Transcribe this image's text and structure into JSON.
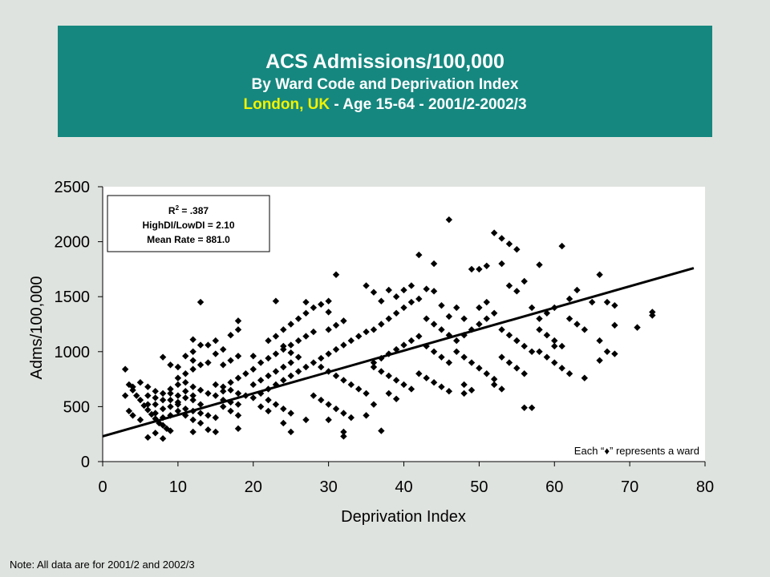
{
  "header": {
    "title": "ACS Admissions/100,000",
    "subtitle": "By Ward Code and Deprivation Index",
    "location": "London, UK",
    "detail": " - Age 15-64 - 2001/2-2002/3"
  },
  "stats_box": {
    "r2_label": "R",
    "r2_sup": "2",
    "r2_value": " = .387",
    "ratio": "HighDI/LowDI = 2.10",
    "mean": "Mean Rate = 881.0"
  },
  "legend_note": "Each “♦” represents a ward",
  "footnote": "Note:  All data are for 2001/2 and 2002/3",
  "colors": {
    "banner": "#15877f",
    "location_highlight": "#f2f200",
    "markers": "#000000"
  },
  "chart_data": {
    "type": "scatter",
    "xlabel": "Deprivation Index",
    "ylabel": "Adms/100,000",
    "xlim": [
      0,
      80
    ],
    "ylim": [
      0,
      2500
    ],
    "x_ticks": [
      0,
      10,
      20,
      30,
      40,
      50,
      60,
      70,
      80
    ],
    "y_ticks": [
      0,
      500,
      1000,
      1500,
      2000,
      2500
    ],
    "grid": false,
    "marker": "diamond",
    "trendline": {
      "x": [
        0,
        78.5
      ],
      "y": [
        230,
        1760
      ]
    },
    "points": [
      [
        3,
        840
      ],
      [
        3.5,
        700
      ],
      [
        4,
        650
      ],
      [
        4.5,
        600
      ],
      [
        5,
        560
      ],
      [
        5.5,
        510
      ],
      [
        6,
        470
      ],
      [
        6.5,
        430
      ],
      [
        7,
        390
      ],
      [
        7.5,
        350
      ],
      [
        8,
        330
      ],
      [
        8.5,
        300
      ],
      [
        9,
        280
      ],
      [
        7,
        260
      ],
      [
        6,
        220
      ],
      [
        8,
        210
      ],
      [
        5,
        380
      ],
      [
        4,
        420
      ],
      [
        3.5,
        460
      ],
      [
        6,
        520
      ],
      [
        7,
        580
      ],
      [
        8,
        620
      ],
      [
        9,
        660
      ],
      [
        10,
        700
      ],
      [
        11,
        720
      ],
      [
        12,
        680
      ],
      [
        13,
        650
      ],
      [
        14,
        620
      ],
      [
        9,
        560
      ],
      [
        10,
        520
      ],
      [
        11,
        480
      ],
      [
        12,
        460
      ],
      [
        13,
        440
      ],
      [
        14,
        420
      ],
      [
        15,
        400
      ],
      [
        8,
        480
      ],
      [
        9,
        500
      ],
      [
        10,
        540
      ],
      [
        11,
        580
      ],
      [
        12,
        600
      ],
      [
        7,
        640
      ],
      [
        6,
        680
      ],
      [
        5,
        720
      ],
      [
        4,
        680
      ],
      [
        3,
        600
      ],
      [
        10,
        600
      ],
      [
        11,
        640
      ],
      [
        12,
        560
      ],
      [
        13,
        520
      ],
      [
        9,
        620
      ],
      [
        8,
        560
      ],
      [
        7,
        520
      ],
      [
        6,
        600
      ],
      [
        10,
        460
      ],
      [
        11,
        420
      ],
      [
        12,
        380
      ],
      [
        13,
        350
      ],
      [
        9,
        420
      ],
      [
        8,
        400
      ],
      [
        7,
        440
      ],
      [
        10,
        760
      ],
      [
        11,
        800
      ],
      [
        12,
        840
      ],
      [
        13,
        880
      ],
      [
        14,
        900
      ],
      [
        12,
        920
      ],
      [
        11,
        960
      ],
      [
        12,
        1000
      ],
      [
        13,
        1060
      ],
      [
        12,
        1110
      ],
      [
        8,
        950
      ],
      [
        9,
        880
      ],
      [
        10,
        860
      ],
      [
        15,
        700
      ],
      [
        16,
        680
      ],
      [
        17,
        650
      ],
      [
        18,
        620
      ],
      [
        19,
        600
      ],
      [
        20,
        580
      ],
      [
        16,
        560
      ],
      [
        17,
        540
      ],
      [
        18,
        520
      ],
      [
        15,
        600
      ],
      [
        16,
        640
      ],
      [
        17,
        720
      ],
      [
        18,
        760
      ],
      [
        19,
        800
      ],
      [
        20,
        840
      ],
      [
        16,
        880
      ],
      [
        17,
        920
      ],
      [
        18,
        960
      ],
      [
        15,
        980
      ],
      [
        16,
        1020
      ],
      [
        14,
        1060
      ],
      [
        15,
        1100
      ],
      [
        17,
        1150
      ],
      [
        18,
        1200
      ],
      [
        18,
        1280
      ],
      [
        13,
        1450
      ],
      [
        16,
        500
      ],
      [
        17,
        460
      ],
      [
        18,
        420
      ],
      [
        18,
        300
      ],
      [
        14,
        290
      ],
      [
        15,
        270
      ],
      [
        12,
        270
      ],
      [
        20,
        700
      ],
      [
        21,
        740
      ],
      [
        22,
        780
      ],
      [
        23,
        820
      ],
      [
        24,
        860
      ],
      [
        25,
        900
      ],
      [
        21,
        620
      ],
      [
        22,
        660
      ],
      [
        23,
        700
      ],
      [
        24,
        740
      ],
      [
        25,
        780
      ],
      [
        26,
        820
      ],
      [
        27,
        860
      ],
      [
        28,
        900
      ],
      [
        22,
        940
      ],
      [
        23,
        980
      ],
      [
        24,
        1020
      ],
      [
        25,
        1060
      ],
      [
        26,
        1100
      ],
      [
        27,
        1140
      ],
      [
        28,
        1180
      ],
      [
        24,
        1200
      ],
      [
        25,
        1250
      ],
      [
        26,
        1300
      ],
      [
        27,
        1350
      ],
      [
        28,
        1400
      ],
      [
        23,
        1460
      ],
      [
        27,
        1450
      ],
      [
        22,
        560
      ],
      [
        23,
        520
      ],
      [
        24,
        480
      ],
      [
        25,
        440
      ],
      [
        21,
        500
      ],
      [
        22,
        460
      ],
      [
        24,
        350
      ],
      [
        25,
        270
      ],
      [
        27,
        380
      ],
      [
        21,
        900
      ],
      [
        20,
        960
      ],
      [
        22,
        1100
      ],
      [
        23,
        1140
      ],
      [
        24,
        1050
      ],
      [
        25,
        990
      ],
      [
        26,
        950
      ],
      [
        29,
        940
      ],
      [
        30,
        980
      ],
      [
        31,
        1020
      ],
      [
        32,
        1060
      ],
      [
        33,
        1100
      ],
      [
        34,
        1140
      ],
      [
        35,
        1180
      ],
      [
        29,
        860
      ],
      [
        30,
        820
      ],
      [
        31,
        780
      ],
      [
        32,
        740
      ],
      [
        33,
        700
      ],
      [
        34,
        660
      ],
      [
        35,
        620
      ],
      [
        30,
        1200
      ],
      [
        31,
        1240
      ],
      [
        32,
        1280
      ],
      [
        30,
        1360
      ],
      [
        29,
        1430
      ],
      [
        30,
        1460
      ],
      [
        31,
        1700
      ],
      [
        28,
        600
      ],
      [
        29,
        560
      ],
      [
        30,
        520
      ],
      [
        31,
        480
      ],
      [
        32,
        440
      ],
      [
        33,
        400
      ],
      [
        30,
        380
      ],
      [
        32,
        270
      ],
      [
        32,
        230
      ],
      [
        36,
        900
      ],
      [
        37,
        940
      ],
      [
        38,
        980
      ],
      [
        39,
        1020
      ],
      [
        40,
        1060
      ],
      [
        41,
        1100
      ],
      [
        42,
        1140
      ],
      [
        36,
        860
      ],
      [
        37,
        820
      ],
      [
        38,
        780
      ],
      [
        39,
        740
      ],
      [
        40,
        700
      ],
      [
        41,
        660
      ],
      [
        36,
        1200
      ],
      [
        37,
        1250
      ],
      [
        38,
        1300
      ],
      [
        39,
        1350
      ],
      [
        40,
        1400
      ],
      [
        41,
        1450
      ],
      [
        39,
        1500
      ],
      [
        40,
        1560
      ],
      [
        41,
        1600
      ],
      [
        42,
        1880
      ],
      [
        43,
        1570
      ],
      [
        44,
        1800
      ],
      [
        35,
        1600
      ],
      [
        36,
        1540
      ],
      [
        37,
        1460
      ],
      [
        38,
        1560
      ],
      [
        43,
        1300
      ],
      [
        44,
        1250
      ],
      [
        45,
        1200
      ],
      [
        46,
        1150
      ],
      [
        43,
        1050
      ],
      [
        44,
        1000
      ],
      [
        45,
        950
      ],
      [
        46,
        900
      ],
      [
        42,
        800
      ],
      [
        43,
        760
      ],
      [
        44,
        720
      ],
      [
        45,
        680
      ],
      [
        46,
        640
      ],
      [
        38,
        620
      ],
      [
        39,
        570
      ],
      [
        36,
        520
      ],
      [
        37,
        280
      ],
      [
        35,
        420
      ],
      [
        42,
        1480
      ],
      [
        45,
        1420
      ],
      [
        46,
        2200
      ],
      [
        47,
        1100
      ],
      [
        48,
        1150
      ],
      [
        49,
        1200
      ],
      [
        50,
        1250
      ],
      [
        51,
        1300
      ],
      [
        52,
        1350
      ],
      [
        47,
        1000
      ],
      [
        48,
        950
      ],
      [
        49,
        900
      ],
      [
        50,
        850
      ],
      [
        51,
        800
      ],
      [
        52,
        750
      ],
      [
        48,
        700
      ],
      [
        49,
        650
      ],
      [
        48,
        620
      ],
      [
        50,
        1400
      ],
      [
        51,
        1450
      ],
      [
        50,
        1750
      ],
      [
        51,
        1780
      ],
      [
        49,
        1750
      ],
      [
        52,
        2080
      ],
      [
        53,
        2030
      ],
      [
        54,
        1980
      ],
      [
        55,
        1930
      ],
      [
        53,
        1800
      ],
      [
        54,
        1600
      ],
      [
        55,
        1550
      ],
      [
        56,
        1640
      ],
      [
        53,
        1200
      ],
      [
        54,
        1150
      ],
      [
        55,
        1100
      ],
      [
        56,
        1050
      ],
      [
        57,
        1000
      ],
      [
        53,
        950
      ],
      [
        54,
        900
      ],
      [
        55,
        850
      ],
      [
        56,
        800
      ],
      [
        52,
        700
      ],
      [
        53,
        660
      ],
      [
        56,
        490
      ],
      [
        57,
        490
      ],
      [
        58,
        1300
      ],
      [
        59,
        1350
      ],
      [
        60,
        1400
      ],
      [
        58,
        1200
      ],
      [
        59,
        1150
      ],
      [
        60,
        1100
      ],
      [
        61,
        1050
      ],
      [
        58,
        1000
      ],
      [
        59,
        950
      ],
      [
        60,
        900
      ],
      [
        61,
        850
      ],
      [
        62,
        800
      ],
      [
        58,
        1790
      ],
      [
        61,
        1960
      ],
      [
        62,
        1480
      ],
      [
        63,
        1560
      ],
      [
        62,
        1300
      ],
      [
        63,
        1250
      ],
      [
        64,
        1200
      ],
      [
        65,
        1450
      ],
      [
        66,
        1700
      ],
      [
        67,
        1450
      ],
      [
        68,
        1420
      ],
      [
        66,
        1100
      ],
      [
        67,
        1000
      ],
      [
        66,
        920
      ],
      [
        68,
        980
      ],
      [
        68,
        1240
      ],
      [
        71,
        1220
      ],
      [
        73,
        1360
      ],
      [
        73,
        1330
      ],
      [
        64,
        760
      ],
      [
        60,
        1050
      ],
      [
        57,
        1400
      ],
      [
        55,
        1100
      ],
      [
        46,
        1320
      ],
      [
        47,
        1400
      ],
      [
        44,
        1550
      ],
      [
        48,
        1300
      ]
    ]
  }
}
